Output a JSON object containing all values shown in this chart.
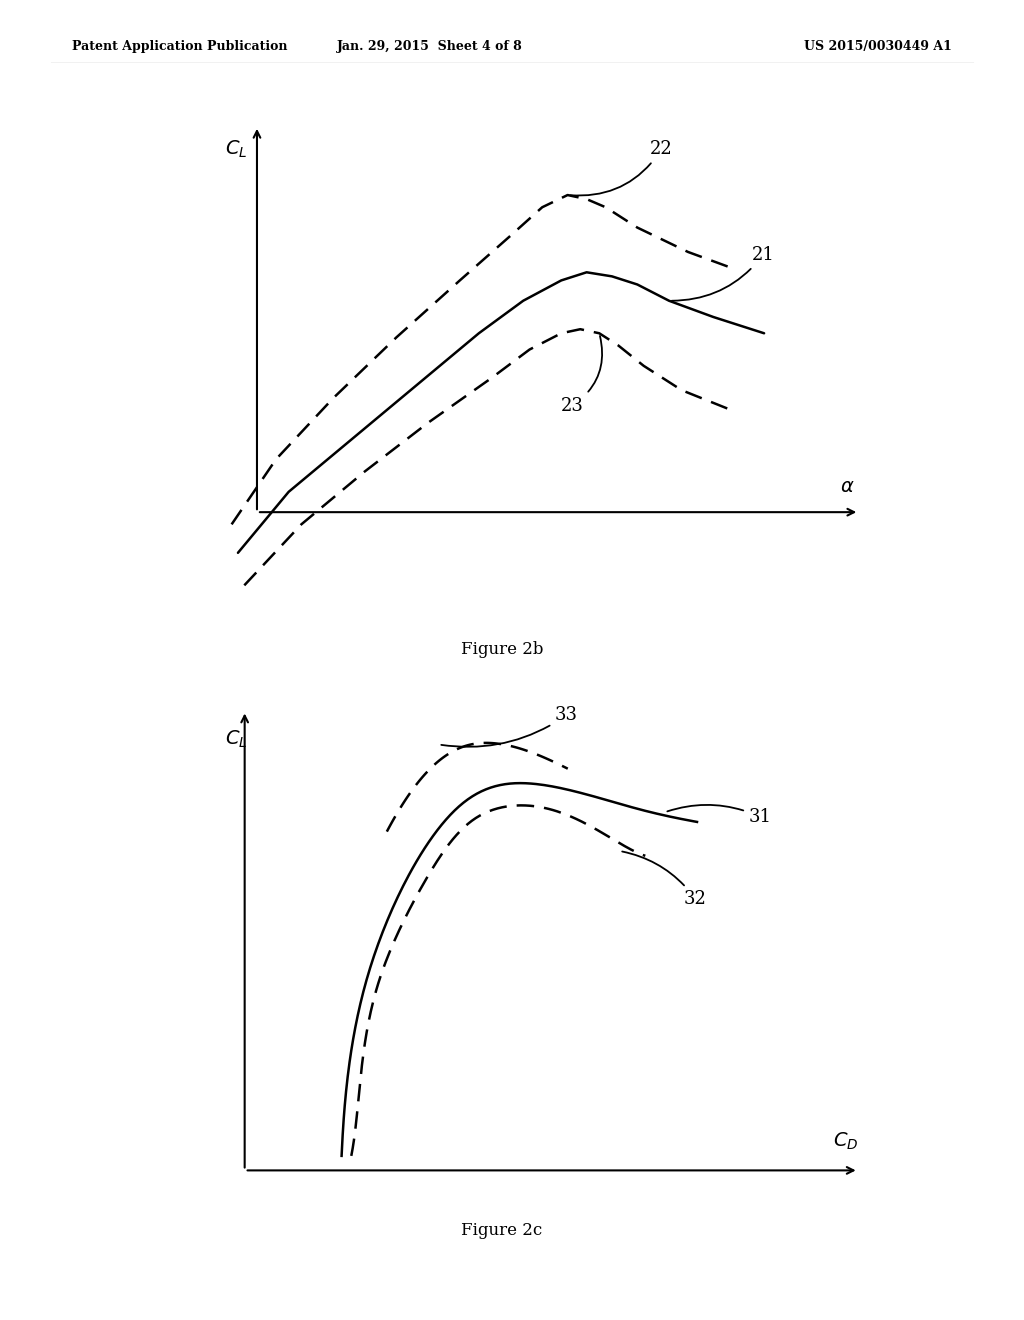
{
  "bg_color": "#ffffff",
  "text_color": "#000000",
  "header_left": "Patent Application Publication",
  "header_mid": "Jan. 29, 2015  Sheet 4 of 8",
  "header_right": "US 2015/0030449 A1",
  "fig2b_caption": "Figure 2b",
  "fig2c_caption": "Figure 2c",
  "label_22": "22",
  "label_21": "21",
  "label_23": "23",
  "label_31": "31",
  "label_32": "32",
  "label_33": "33",
  "header_fontsize": 9,
  "label_fontsize": 13,
  "axis_label_fontsize": 14,
  "caption_fontsize": 12
}
